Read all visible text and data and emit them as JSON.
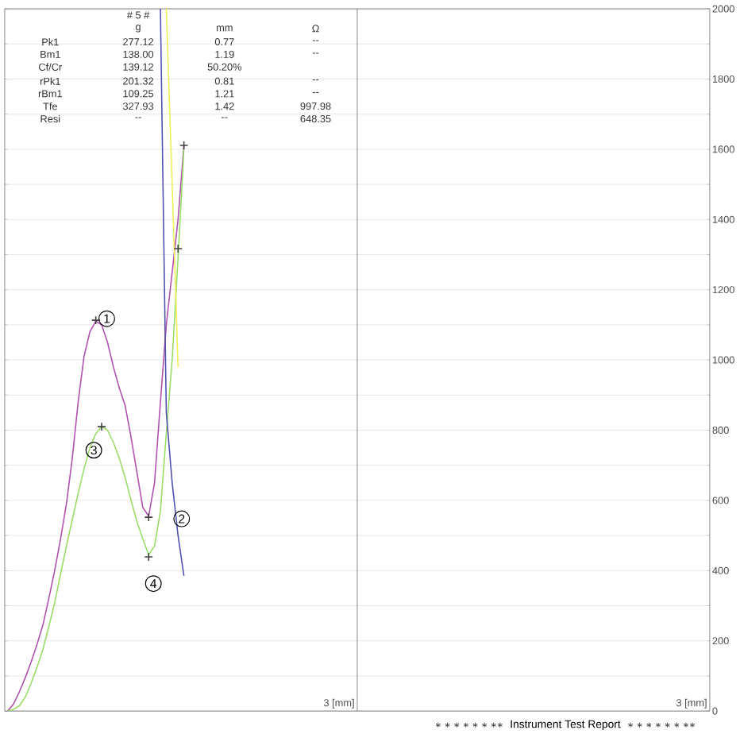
{
  "chart_data": {
    "type": "line",
    "categories": [
      null,
      null,
      null,
      null,
      null,
      null,
      null,
      null,
      null,
      null,
      null,
      null,
      null,
      null,
      null,
      null,
      null,
      null,
      null,
      null,
      null,
      null,
      null,
      null,
      null,
      null,
      null,
      null,
      null,
      null,
      null,
      null,
      null,
      null,
      null,
      null,
      null,
      null,
      null,
      null,
      null,
      null,
      null,
      null,
      null,
      null,
      null,
      null,
      null,
      null,
      null,
      null,
      null,
      null,
      null,
      null,
      null,
      null,
      null,
      null,
      null,
      null,
      null,
      null,
      null,
      null,
      null,
      null,
      null,
      null,
      null,
      null,
      null,
      null,
      null,
      null,
      null,
      null,
      null,
      null,
      null,
      null,
      null,
      null,
      null,
      null,
      null,
      null,
      null,
      null,
      null,
      null,
      null,
      null,
      null,
      null,
      null,
      null,
      null,
      null,
      null,
      null,
      null,
      null,
      null,
      null,
      null,
      null,
      null,
      null,
      null,
      null,
      null,
      null,
      null,
      null,
      null,
      null,
      null,
      null
    ],
    "ylim": [
      0,
      2000
    ],
    "yticks": [
      0,
      {
        "value": 100,
        "label": null
      },
      200,
      {
        "value": 300,
        "label": null
      },
      400,
      {
        "value": 500,
        "label": null
      },
      600,
      {
        "value": 700,
        "label": null
      },
      800,
      {
        "value": 900,
        "label": null
      },
      1000,
      {
        "value": 1100,
        "label": null
      },
      1200,
      {
        "value": 1300,
        "label": null
      },
      1400,
      {
        "value": 1500,
        "label": null
      },
      1600,
      {
        "value": 1700,
        "label": null
      },
      1800,
      {
        "value": 1900,
        "label": null
      },
      2000
    ],
    "tick_labels": "y",
    "grid": "y",
    "marker": "none",
    "series": [
      {
        "color": "#b050b0",
        "values": [
          0,
          20,
          55,
          95,
          140,
          190,
          245,
          320,
          400,
          490,
          590,
          720,
          880,
          1010,
          1080,
          1110,
          1100,
          1050,
          980,
          920,
          870,
          780,
          680,
          580,
          555,
          650,
          880,
          1100,
          1250,
          1400,
          1611,
          null,
          null,
          null,
          null,
          null,
          null,
          null,
          null,
          null,
          null,
          null,
          null,
          null,
          null,
          null,
          null,
          null,
          null,
          null,
          null,
          null,
          null,
          null,
          null,
          null,
          null,
          null,
          null,
          null,
          null,
          null,
          null,
          null,
          null,
          null,
          null,
          null,
          null,
          null,
          null,
          null,
          null,
          null,
          null,
          null,
          null,
          null,
          null,
          null,
          null,
          null,
          null,
          null,
          null,
          null,
          null,
          null,
          null,
          null,
          null,
          null,
          null,
          null,
          null,
          null,
          null,
          null,
          null,
          null,
          null,
          null,
          null,
          null,
          null,
          null,
          null,
          null,
          null,
          null,
          null,
          null,
          null,
          null,
          null,
          null,
          null,
          null,
          null,
          null
        ]
      },
      {
        "color": "#99dd66",
        "values": [
          0,
          5,
          15,
          40,
          80,
          125,
          175,
          240,
          308,
          390,
          470,
          545,
          620,
          690,
          750,
          790,
          810,
          800,
          765,
          720,
          665,
          600,
          540,
          490,
          445,
          470,
          570,
          790,
          1000,
          1290,
          1600,
          null,
          null,
          null,
          null,
          null,
          null,
          null,
          null,
          null,
          null,
          null,
          null,
          null,
          null,
          null,
          null,
          null,
          null,
          null,
          null,
          null,
          null,
          null,
          null,
          null,
          null,
          null,
          null,
          null,
          null,
          null,
          null,
          null,
          null,
          null,
          null,
          null,
          null,
          null,
          null,
          null,
          null,
          null,
          null,
          null,
          null,
          null,
          null,
          null,
          null,
          null,
          null,
          null,
          null,
          null,
          null,
          null,
          null,
          null,
          null,
          null,
          null,
          null,
          null,
          null,
          null,
          null,
          null,
          null,
          null,
          null,
          null,
          null,
          null,
          null,
          null,
          null,
          null,
          null,
          null,
          null,
          null,
          null,
          null,
          null,
          null,
          null,
          null,
          null
        ]
      },
      {
        "color": "#eeee55",
        "values": [
          null,
          null,
          null,
          null,
          null,
          null,
          null,
          null,
          null,
          null,
          null,
          null,
          null,
          null,
          null,
          null,
          null,
          null,
          null,
          null,
          null,
          null,
          null,
          null,
          null,
          null,
          null,
          2000,
          1500,
          980,
          null,
          null,
          null,
          null,
          null,
          null,
          null,
          null,
          null,
          null,
          null,
          null,
          null,
          null,
          null,
          null,
          null,
          null,
          null,
          null,
          null,
          null,
          null,
          null,
          null,
          null,
          null,
          null,
          null,
          null,
          null,
          null,
          null,
          null,
          null,
          null,
          null,
          null,
          null,
          null,
          null,
          null,
          null,
          null,
          null,
          null,
          null,
          null,
          null,
          null,
          null,
          null,
          null,
          null,
          null,
          null,
          null,
          null,
          null,
          null,
          null,
          null,
          null,
          null,
          null,
          null,
          null,
          null,
          null,
          null,
          null,
          null,
          null,
          null,
          null,
          null,
          null,
          null,
          null,
          null,
          null,
          null,
          null,
          null,
          null,
          null,
          null,
          null,
          null,
          null
        ]
      },
      {
        "color": "#5050b0",
        "values": [
          null,
          null,
          null,
          null,
          null,
          null,
          null,
          null,
          null,
          null,
          null,
          null,
          null,
          null,
          null,
          null,
          null,
          null,
          null,
          null,
          null,
          null,
          null,
          null,
          null,
          null,
          2000,
          850,
          650,
          500,
          385,
          null,
          null,
          null,
          null,
          null,
          null,
          null,
          null,
          null,
          null,
          null,
          null,
          null,
          null,
          null,
          null,
          null,
          null,
          null,
          null,
          null,
          null,
          null,
          null,
          null,
          null,
          null,
          null,
          null,
          null,
          null,
          null,
          null,
          null,
          null,
          null,
          null,
          null,
          null,
          null,
          null,
          null,
          null,
          null,
          null,
          null,
          null,
          null,
          null,
          null,
          null,
          null,
          null,
          null,
          null,
          null,
          null,
          null,
          null,
          null,
          null,
          null,
          null,
          null,
          null,
          null,
          null,
          null,
          null,
          null,
          null,
          null,
          null,
          null,
          null,
          null,
          null,
          null,
          null,
          null,
          null,
          null,
          null,
          null,
          null,
          null,
          null,
          null,
          null
        ]
      },
      {
        "type": "scatter",
        "marker": "cross",
        "color": "#404040",
        "values": [
          null,
          null,
          null,
          null,
          null,
          null,
          null,
          null,
          null,
          null,
          null,
          null,
          null,
          null,
          null,
          1113,
          null,
          null,
          null,
          null,
          null,
          null,
          null,
          null,
          552,
          null,
          null,
          null,
          null,
          1317,
          1611,
          null,
          null,
          null,
          null,
          null,
          null,
          null,
          null,
          null,
          null,
          null,
          null,
          null,
          null,
          null,
          null,
          null,
          null,
          null,
          null,
          null,
          null,
          null,
          null,
          null,
          null,
          null,
          null,
          null,
          null,
          null,
          null,
          null,
          null,
          null,
          null,
          null,
          null,
          null,
          null,
          null,
          null,
          null,
          null,
          null,
          null,
          null,
          null,
          null,
          null,
          null,
          null,
          null,
          null,
          null,
          null,
          null,
          null,
          null,
          null,
          null,
          null,
          null,
          null,
          null,
          null,
          null,
          null,
          null,
          null,
          null,
          null,
          null,
          null,
          null,
          null,
          null,
          null,
          null,
          null,
          null,
          null,
          null,
          null,
          null,
          null,
          null,
          null,
          null
        ]
      },
      {
        "type": "scatter",
        "marker": "cross",
        "color": "#404040",
        "values": [
          null,
          null,
          null,
          null,
          null,
          null,
          null,
          null,
          null,
          null,
          null,
          null,
          null,
          null,
          null,
          null,
          810,
          null,
          null,
          null,
          null,
          null,
          null,
          null,
          439,
          null,
          null,
          null,
          null,
          null,
          null,
          null,
          null,
          null,
          null,
          null,
          null,
          null,
          null,
          null,
          null,
          null,
          null,
          null,
          null,
          null,
          null,
          null,
          null,
          null,
          null,
          null,
          null,
          null,
          null,
          null,
          null,
          null,
          null,
          null,
          null,
          null,
          null,
          null,
          null,
          null,
          null,
          null,
          null,
          null,
          null,
          null,
          null,
          null,
          null,
          null,
          null,
          null,
          null,
          null,
          null,
          null,
          null,
          null,
          null,
          null,
          null,
          null,
          null,
          null,
          null,
          null,
          null,
          null,
          null,
          null,
          null,
          null,
          null,
          null,
          null,
          null,
          null,
          null,
          null,
          null,
          null,
          null,
          null,
          null,
          null,
          null,
          null,
          null,
          null,
          null,
          null,
          null,
          null,
          null
        ]
      }
    ],
    "annotations": [
      "# 5 #",
      "g",
      "mm",
      "Ω",
      "Pk1",
      "277.12",
      "0.77",
      "--",
      "Bm1",
      "138.00",
      "1.19",
      "--",
      "Cf/Cr",
      "139.12",
      "50.20%",
      "rPk1",
      "201.32",
      "0.81",
      "--",
      "rBm1",
      "109.25",
      "1.21",
      "--",
      "Tfe",
      "327.93",
      "1.42",
      "997.98",
      "Resi",
      "--",
      "--",
      "648.35",
      "3 [mm]",
      "3 [mm]",
      "1",
      "2",
      "3",
      "4",
      "********",
      "Instrument Test Report",
      "********"
    ]
  }
}
